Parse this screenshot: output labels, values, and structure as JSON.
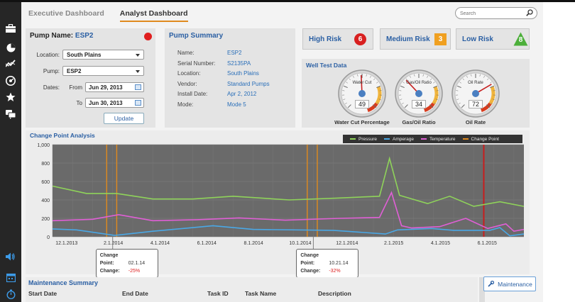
{
  "tabs": [
    {
      "label": "Executive Dashboard",
      "active": false
    },
    {
      "label": "Analyst Dashboard",
      "active": true
    }
  ],
  "search": {
    "placeholder": "Search"
  },
  "sidebar_icons": [
    "briefcase-icon",
    "pie-chart-icon",
    "trend-icon",
    "gauge-icon",
    "star-icon",
    "chat-icon"
  ],
  "sidebar_bottom_icons": [
    "volume-icon",
    "calendar-icon",
    "timer-icon"
  ],
  "pump": {
    "title_prefix": "Pump Name:",
    "name": "ESP2",
    "status_color": "#e01e1e",
    "location_label": "Location:",
    "location_value": "South Plains",
    "pump_label": "Pump:",
    "pump_value": "ESP2",
    "dates_label": "Dates:",
    "from_label": "From",
    "from_value": "Jun 29, 2013",
    "to_label": "To",
    "to_value": "Jun 30, 2013",
    "update_label": "Update"
  },
  "summary": {
    "title": "Pump Summary",
    "rows": [
      {
        "label": "Name:",
        "value": "ESP2"
      },
      {
        "label": "Serial Number:",
        "value": "S2135PA"
      },
      {
        "label": "Location:",
        "value": "South Plains"
      },
      {
        "label": "Vendor:",
        "value": "Standard Pumps"
      },
      {
        "label": "Install Date:",
        "value": "Apr 2, 2012"
      },
      {
        "label": "Mode:",
        "value": "Mode 5"
      }
    ]
  },
  "risk": {
    "high": {
      "label": "High Risk",
      "count": "6",
      "color": "#d82020"
    },
    "medium": {
      "label": "Medium Risk",
      "count": "3",
      "color": "#f0a020"
    },
    "low": {
      "label": "Low Risk",
      "count": "8",
      "color": "#4caf3a"
    }
  },
  "well_test": {
    "title": "Well Test Data",
    "gauges": [
      {
        "dial_label": "Water Cut",
        "value": "49",
        "caption": "Water Cut Percentage",
        "fraction": 0.49
      },
      {
        "dial_label": "Gas/Oil Ratio",
        "value": "34",
        "caption": "Gas/Oil Ratio",
        "fraction": 0.34
      },
      {
        "dial_label": "Oil Rate",
        "value": "72",
        "caption": "Oil Rate",
        "fraction": 0.72
      }
    ]
  },
  "chart_data": {
    "type": "line",
    "title": "Change Point Analysis",
    "y_ticks": [
      "1,000",
      "800",
      "600",
      "400",
      "200",
      "0"
    ],
    "ylim": [
      0,
      1000
    ],
    "x_ticks": [
      "12.1.2013",
      "2.1.2014",
      "4.1.2014",
      "6.1.2014",
      "8.1.2014",
      "10.1.2014",
      "12.1.2014",
      "2.1.2015",
      "4.1.2015",
      "6.1.2015"
    ],
    "xlim": [
      0,
      23.5
    ],
    "grid": true,
    "legend_position": "top-right",
    "series": [
      {
        "name": "Pressure",
        "color": "#8fd35a",
        "points": [
          [
            0,
            550
          ],
          [
            1.7,
            470
          ],
          [
            3.2,
            470
          ],
          [
            5,
            410
          ],
          [
            7,
            410
          ],
          [
            9,
            440
          ],
          [
            11.8,
            400
          ],
          [
            14.2,
            420
          ],
          [
            16.3,
            440
          ],
          [
            16.8,
            850
          ],
          [
            17.3,
            450
          ],
          [
            18.7,
            360
          ],
          [
            19.8,
            440
          ],
          [
            21,
            330
          ],
          [
            22.3,
            380
          ],
          [
            23.5,
            330
          ]
        ]
      },
      {
        "name": "Amperage",
        "color": "#4aa8e6",
        "points": [
          [
            0,
            85
          ],
          [
            1.2,
            75
          ],
          [
            3.1,
            15
          ],
          [
            5,
            60
          ],
          [
            8,
            120
          ],
          [
            10,
            80
          ],
          [
            14,
            70
          ],
          [
            16.6,
            30
          ],
          [
            17.2,
            75
          ],
          [
            18.9,
            90
          ],
          [
            20,
            70
          ],
          [
            21.8,
            70
          ],
          [
            22.3,
            100
          ],
          [
            22.8,
            10
          ],
          [
            23.5,
            30
          ]
        ]
      },
      {
        "name": "Temperature",
        "color": "#e05fd6",
        "points": [
          [
            0,
            175
          ],
          [
            2,
            190
          ],
          [
            3.3,
            240
          ],
          [
            5,
            175
          ],
          [
            7.2,
            185
          ],
          [
            9.3,
            205
          ],
          [
            11.6,
            180
          ],
          [
            14.3,
            200
          ],
          [
            16.3,
            210
          ],
          [
            16.9,
            480
          ],
          [
            17.4,
            120
          ],
          [
            17.9,
            95
          ],
          [
            19.3,
            110
          ],
          [
            20.6,
            200
          ],
          [
            21.7,
            90
          ],
          [
            22.6,
            140
          ],
          [
            23,
            60
          ],
          [
            23.5,
            80
          ]
        ]
      }
    ],
    "change_points": [
      {
        "name": "Change Point",
        "x": 2.7,
        "color": "#e08a1e"
      },
      {
        "name": "Change Point",
        "x": 3.2,
        "color": "#e08a1e"
      },
      {
        "name": "Change Point",
        "x": 12.7,
        "color": "#e08a1e"
      },
      {
        "name": "Change Point",
        "x": 13.2,
        "color": "#e08a1e"
      },
      {
        "name": "Change Point",
        "x": 21.5,
        "color": "#c81e1e"
      }
    ],
    "annotations": [
      {
        "change_point_label": "Change Point:",
        "change_point_value": "02.1.14",
        "change_label": "Change:",
        "change_value": "-25%"
      },
      {
        "change_point_label": "Change Point:",
        "change_point_value": "10.21.14",
        "change_label": "Change:",
        "change_value": "-32%"
      }
    ]
  },
  "maintenance": {
    "title": "Maintenance Summary",
    "button_label": "Maintenance",
    "columns": [
      "Start Date",
      "End Date",
      "Task ID",
      "Task Name",
      "Description"
    ]
  }
}
